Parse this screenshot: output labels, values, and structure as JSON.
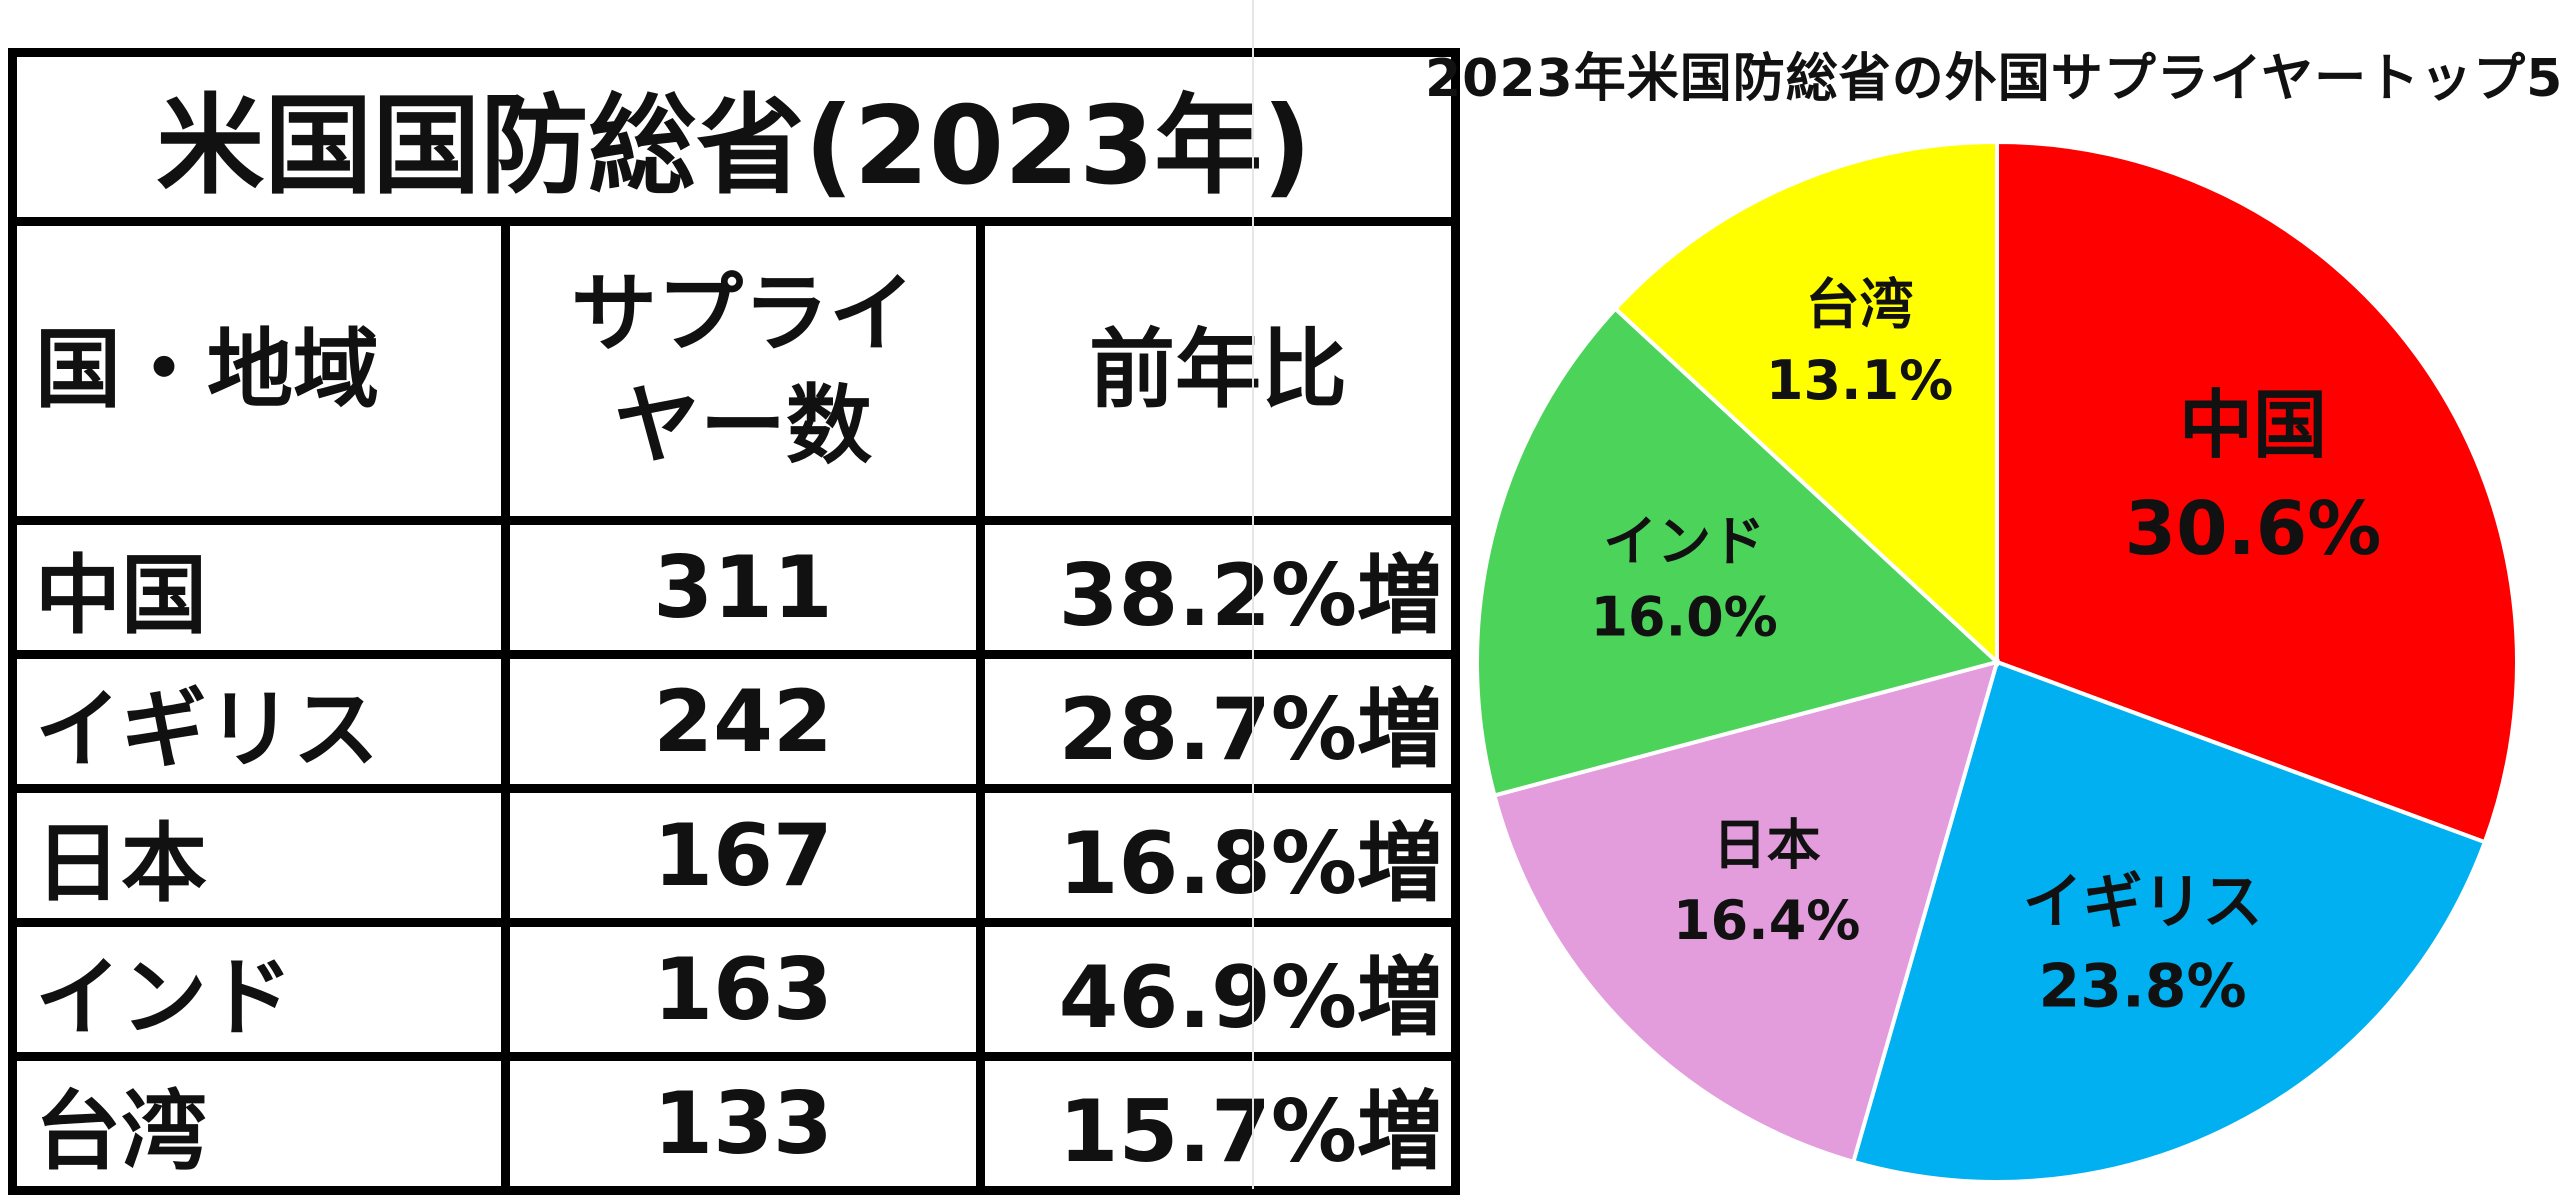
{
  "table": {
    "title": "米国国防総省(2023年)",
    "headers": {
      "country": "国・地域",
      "suppliers_line1": "サプライ",
      "suppliers_line2": "ヤー数",
      "yoy": "前年比"
    },
    "rows": [
      {
        "name": "中国",
        "count": "311",
        "yoy": "38.2%増"
      },
      {
        "name": "イギリス",
        "count": "242",
        "yoy": "28.7%増"
      },
      {
        "name": "日本",
        "count": "167",
        "yoy": "16.8%増"
      },
      {
        "name": "インド",
        "count": "163",
        "yoy": "46.9%増"
      },
      {
        "name": "台湾",
        "count": "133",
        "yoy": "15.7%増"
      }
    ]
  },
  "chart_data": {
    "type": "pie",
    "title": "2023年米国防総省の外国サプライヤートップ5",
    "slices": [
      {
        "label": "中国",
        "value": 30.6,
        "value_label": "30.6%",
        "color": "#ff0000"
      },
      {
        "label": "イギリス",
        "value": 23.8,
        "value_label": "23.8%",
        "color": "#00b0f0"
      },
      {
        "label": "日本",
        "value": 16.4,
        "value_label": "16.4%",
        "color": "#e39cdc"
      },
      {
        "label": "インド",
        "value": 16.0,
        "value_label": "16.0%",
        "color": "#4cd35a"
      },
      {
        "label": "台湾",
        "value": 13.1,
        "value_label": "13.1%",
        "color": "#ffff00"
      }
    ]
  }
}
